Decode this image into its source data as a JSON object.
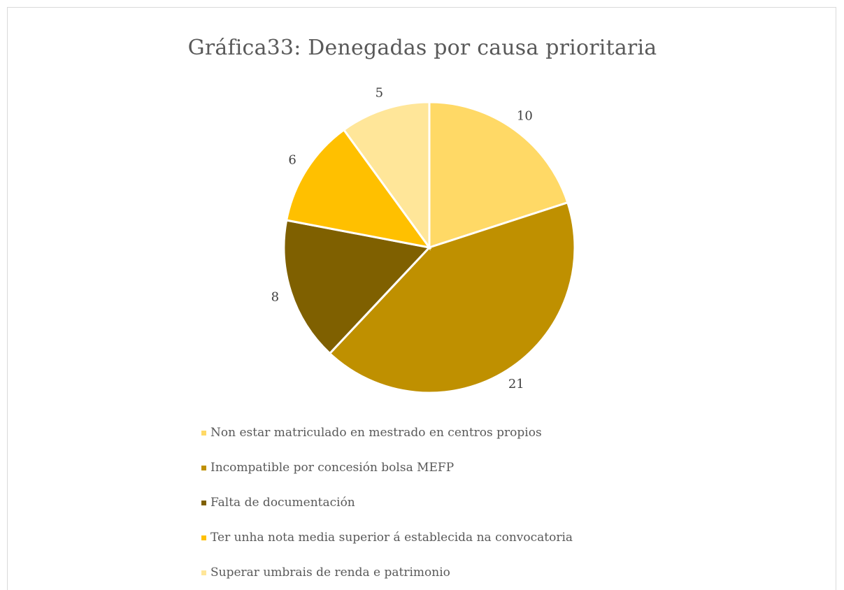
{
  "chart_data": {
    "type": "pie",
    "title": "Gráfica33: Denegadas por causa prioritaria",
    "legend_position": "bottom",
    "slices": [
      {
        "label": "Non estar matriculado en mestrado en centros propios",
        "value": 10,
        "color": "#FFD966"
      },
      {
        "label": "Incompatible por concesión bolsa MEFP",
        "value": 21,
        "color": "#BF9000"
      },
      {
        "label": "Falta de documentación",
        "value": 8,
        "color": "#7F6000"
      },
      {
        "label": "Ter unha nota media superior á establecida na convocatoria",
        "value": 6,
        "color": "#FFC000"
      },
      {
        "label": "Superar umbrais de renda e patrimonio",
        "value": 5,
        "color": "#FFE699"
      }
    ]
  }
}
